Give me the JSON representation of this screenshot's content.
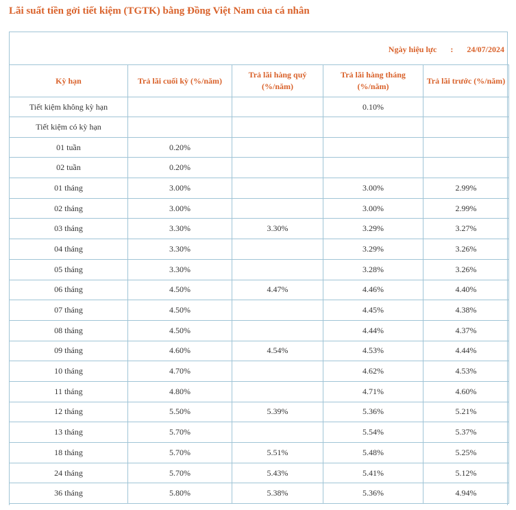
{
  "title": "Lãi suất tiền gởi tiết kiệm (TGTK) bằng Đồng Việt Nam của cá nhân",
  "effective": {
    "label": "Ngày hiệu lực",
    "separator": ":",
    "date": "24/07/2024"
  },
  "table": {
    "headers": [
      "Kỳ hạn",
      "Trả lãi cuối  kỳ (%/năm)",
      "Trả lãi hàng quý (%/năm)",
      "Trả lãi hàng tháng (%/năm)",
      "Trả lãi trước (%/năm)"
    ],
    "rows": [
      [
        "Tiết kiệm không kỳ hạn",
        "",
        "",
        "0.10%",
        ""
      ],
      [
        "Tiết kiệm có kỳ hạn",
        "",
        "",
        "",
        ""
      ],
      [
        "01 tuần",
        "0.20%",
        "",
        "",
        ""
      ],
      [
        "02 tuần",
        "0.20%",
        "",
        "",
        ""
      ],
      [
        "01 tháng",
        "3.00%",
        "",
        "3.00%",
        "2.99%"
      ],
      [
        "02 tháng",
        "3.00%",
        "",
        "3.00%",
        "2.99%"
      ],
      [
        "03 tháng",
        "3.30%",
        "3.30%",
        "3.29%",
        "3.27%"
      ],
      [
        "04 tháng",
        "3.30%",
        "",
        "3.29%",
        "3.26%"
      ],
      [
        "05 tháng",
        "3.30%",
        "",
        "3.28%",
        "3.26%"
      ],
      [
        "06 tháng",
        "4.50%",
        "4.47%",
        "4.46%",
        "4.40%"
      ],
      [
        "07 tháng",
        "4.50%",
        "",
        "4.45%",
        "4.38%"
      ],
      [
        "08 tháng",
        "4.50%",
        "",
        "4.44%",
        "4.37%"
      ],
      [
        "09 tháng",
        "4.60%",
        "4.54%",
        "4.53%",
        "4.44%"
      ],
      [
        "10 tháng",
        "4.70%",
        "",
        "4.62%",
        "4.53%"
      ],
      [
        "11 tháng",
        "4.80%",
        "",
        "4.71%",
        "4.60%"
      ],
      [
        "12 tháng",
        "5.50%",
        "5.39%",
        "5.36%",
        "5.21%"
      ],
      [
        "13 tháng",
        "5.70%",
        "",
        "5.54%",
        "5.37%"
      ],
      [
        "18 tháng",
        "5.70%",
        "5.51%",
        "5.48%",
        "5.25%"
      ],
      [
        "24 tháng",
        "5.70%",
        "5.43%",
        "5.41%",
        "5.12%"
      ],
      [
        "36 tháng",
        "5.80%",
        "5.38%",
        "5.36%",
        "4.94%"
      ]
    ]
  },
  "colors": {
    "heading": "#d9622b",
    "border": "#9fc4d6",
    "text": "#333333"
  }
}
